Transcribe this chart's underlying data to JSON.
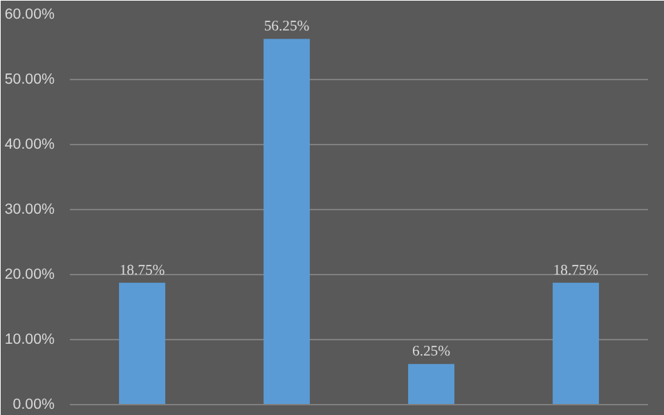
{
  "chart_data": {
    "type": "bar",
    "categories": [
      null,
      null,
      null,
      null
    ],
    "values": [
      18.75,
      56.25,
      6.25,
      18.75
    ],
    "value_labels": [
      "18.75%",
      "56.25%",
      "6.25%",
      "18.75%"
    ],
    "color": "#5b9bd5",
    "ylim": [
      0,
      60
    ],
    "yticks": [
      {
        "value": 0,
        "label": "0.00%"
      },
      {
        "value": 10,
        "label": "10.00%"
      },
      {
        "value": 20,
        "label": "20.00%"
      },
      {
        "value": 30,
        "label": "30.00%"
      },
      {
        "value": 40,
        "label": "40.00%"
      },
      {
        "value": 50,
        "label": "50.00%"
      },
      {
        "value": 60,
        "label": "60.00%"
      }
    ],
    "grid": "y"
  }
}
